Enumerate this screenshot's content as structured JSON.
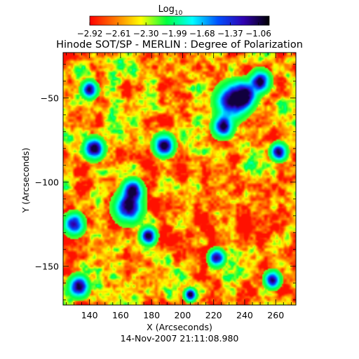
{
  "chart_data": {
    "type": "heatmap",
    "title": "Hinode SOT/SP - MERLIN : Degree of Polarization",
    "xlabel": "X (Arcseconds)",
    "ylabel": "Y (Arcseconds)",
    "footer": "14-Nov-2007 21:11:08.980",
    "xlim": [
      123,
      273
    ],
    "ylim": [
      -173,
      -23
    ],
    "x_ticks": [
      140,
      160,
      180,
      200,
      220,
      240,
      260
    ],
    "y_ticks": [
      -50,
      -100,
      -150
    ],
    "colorbar": {
      "label": "Log",
      "label_sub": "10",
      "range": [
        -2.92,
        -0.94
      ],
      "ticks": [
        "-2.92",
        "-2.61",
        "-2.30",
        "-1.99",
        "-1.68",
        "-1.37",
        "-1.06"
      ],
      "colormap": [
        "#ff0000",
        "#ff7800",
        "#ffff00",
        "#00ff40",
        "#00ffff",
        "#0050ff",
        "#3000b0",
        "#000000"
      ]
    },
    "high_polarization_patches": [
      {
        "x": 165,
        "y": -115,
        "extent": 7
      },
      {
        "x": 168,
        "y": -105,
        "extent": 5
      },
      {
        "x": 232,
        "y": -52,
        "extent": 8
      },
      {
        "x": 240,
        "y": -48,
        "extent": 6
      },
      {
        "x": 250,
        "y": -40,
        "extent": 5
      },
      {
        "x": 226,
        "y": -67,
        "extent": 5
      },
      {
        "x": 188,
        "y": -78,
        "extent": 5
      },
      {
        "x": 143,
        "y": -80,
        "extent": 5
      },
      {
        "x": 130,
        "y": -125,
        "extent": 5
      },
      {
        "x": 178,
        "y": -132,
        "extent": 4
      },
      {
        "x": 133,
        "y": -162,
        "extent": 5
      },
      {
        "x": 140,
        "y": -45,
        "extent": 4
      },
      {
        "x": 262,
        "y": -82,
        "extent": 4
      },
      {
        "x": 258,
        "y": -158,
        "extent": 4
      },
      {
        "x": 205,
        "y": -167,
        "extent": 3
      },
      {
        "x": 222,
        "y": -145,
        "extent": 4
      }
    ]
  }
}
